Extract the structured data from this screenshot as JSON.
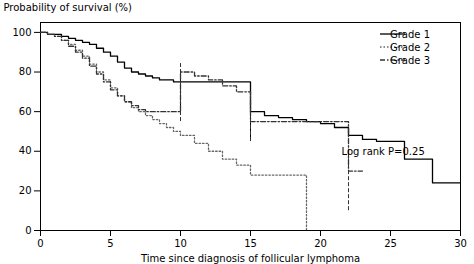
{
  "chart_data": {
    "type": "line",
    "xlabel": "Time since diagnosis of follicular lymphoma",
    "ylabel": "Probability of survival (%)",
    "xlim": [
      0,
      30
    ],
    "ylim": [
      0,
      105
    ],
    "xticks": [
      0,
      5,
      10,
      15,
      20,
      25,
      30
    ],
    "yticks": [
      0,
      20,
      40,
      60,
      80,
      100
    ],
    "legend": "upper right",
    "series": [
      {
        "name": "Grade 1",
        "color": "#000000",
        "line_style": "solid",
        "x": [
          0,
          0.5,
          1,
          1.5,
          2,
          2.5,
          3,
          3.5,
          4,
          4.5,
          5,
          5.5,
          6,
          6.5,
          7,
          7.5,
          8,
          8.5,
          9,
          9.5,
          10,
          15,
          15,
          16,
          17,
          18,
          19,
          20,
          21,
          22,
          23,
          24,
          25,
          26,
          27,
          28,
          29,
          30
        ],
        "values": [
          100,
          99,
          99,
          98,
          97,
          96,
          95,
          94,
          92,
          90,
          88,
          85,
          82,
          80,
          79,
          78,
          77,
          76,
          76,
          75,
          75,
          75,
          60,
          58,
          57,
          56,
          55,
          54,
          52,
          48,
          46,
          45,
          45,
          36,
          36,
          24,
          24,
          24
        ],
        "censors": {
          "x": [
            10,
            15
          ],
          "y_bottom": [
            60,
            45
          ],
          "y_top": [
            80,
            65
          ],
          "line_style": "solid"
        }
      },
      {
        "name": "Grade 2",
        "color": "#666666",
        "line_style": "dotted",
        "x": [
          0,
          0.5,
          1,
          1.5,
          2,
          2.5,
          3,
          3.5,
          4,
          4.5,
          5,
          5.5,
          6,
          6.5,
          7,
          7.5,
          8,
          8.5,
          9,
          9.5,
          10,
          11,
          12,
          13,
          14,
          15,
          15,
          19,
          19
        ],
        "values": [
          100,
          99,
          98,
          96,
          94,
          91,
          88,
          84,
          80,
          76,
          72,
          68,
          65,
          62,
          60,
          58,
          56,
          54,
          52,
          50,
          48,
          44,
          40,
          36,
          33,
          30,
          28,
          28,
          0
        ]
      },
      {
        "name": "Grade 3",
        "color": "#333333",
        "line_style": "dashdot",
        "x": [
          0,
          0.5,
          1,
          1.5,
          2,
          2.5,
          3,
          3.5,
          4,
          4.5,
          5,
          5.5,
          6,
          6.5,
          7,
          7.5,
          8,
          8.5,
          9,
          9.5,
          10,
          10,
          11,
          12,
          13,
          14,
          15,
          15,
          16,
          17,
          18,
          19,
          20,
          21,
          22,
          22,
          23
        ],
        "values": [
          100,
          99,
          98,
          96,
          93,
          90,
          87,
          83,
          79,
          75,
          71,
          68,
          65,
          63,
          61,
          60,
          60,
          60,
          60,
          60,
          60,
          80,
          78,
          76,
          73,
          70,
          67,
          55,
          55,
          55,
          55,
          55,
          55,
          55,
          55,
          30,
          30
        ],
        "censors": {
          "x": [
            10,
            15,
            22
          ],
          "y_bottom": [
            55,
            45,
            10
          ],
          "y_top": [
            85,
            70,
            40
          ],
          "line_style": "dashed"
        }
      }
    ],
    "annotations": [
      {
        "text": "Log rank P=0.25",
        "x": 21.5,
        "y": 38
      }
    ]
  }
}
